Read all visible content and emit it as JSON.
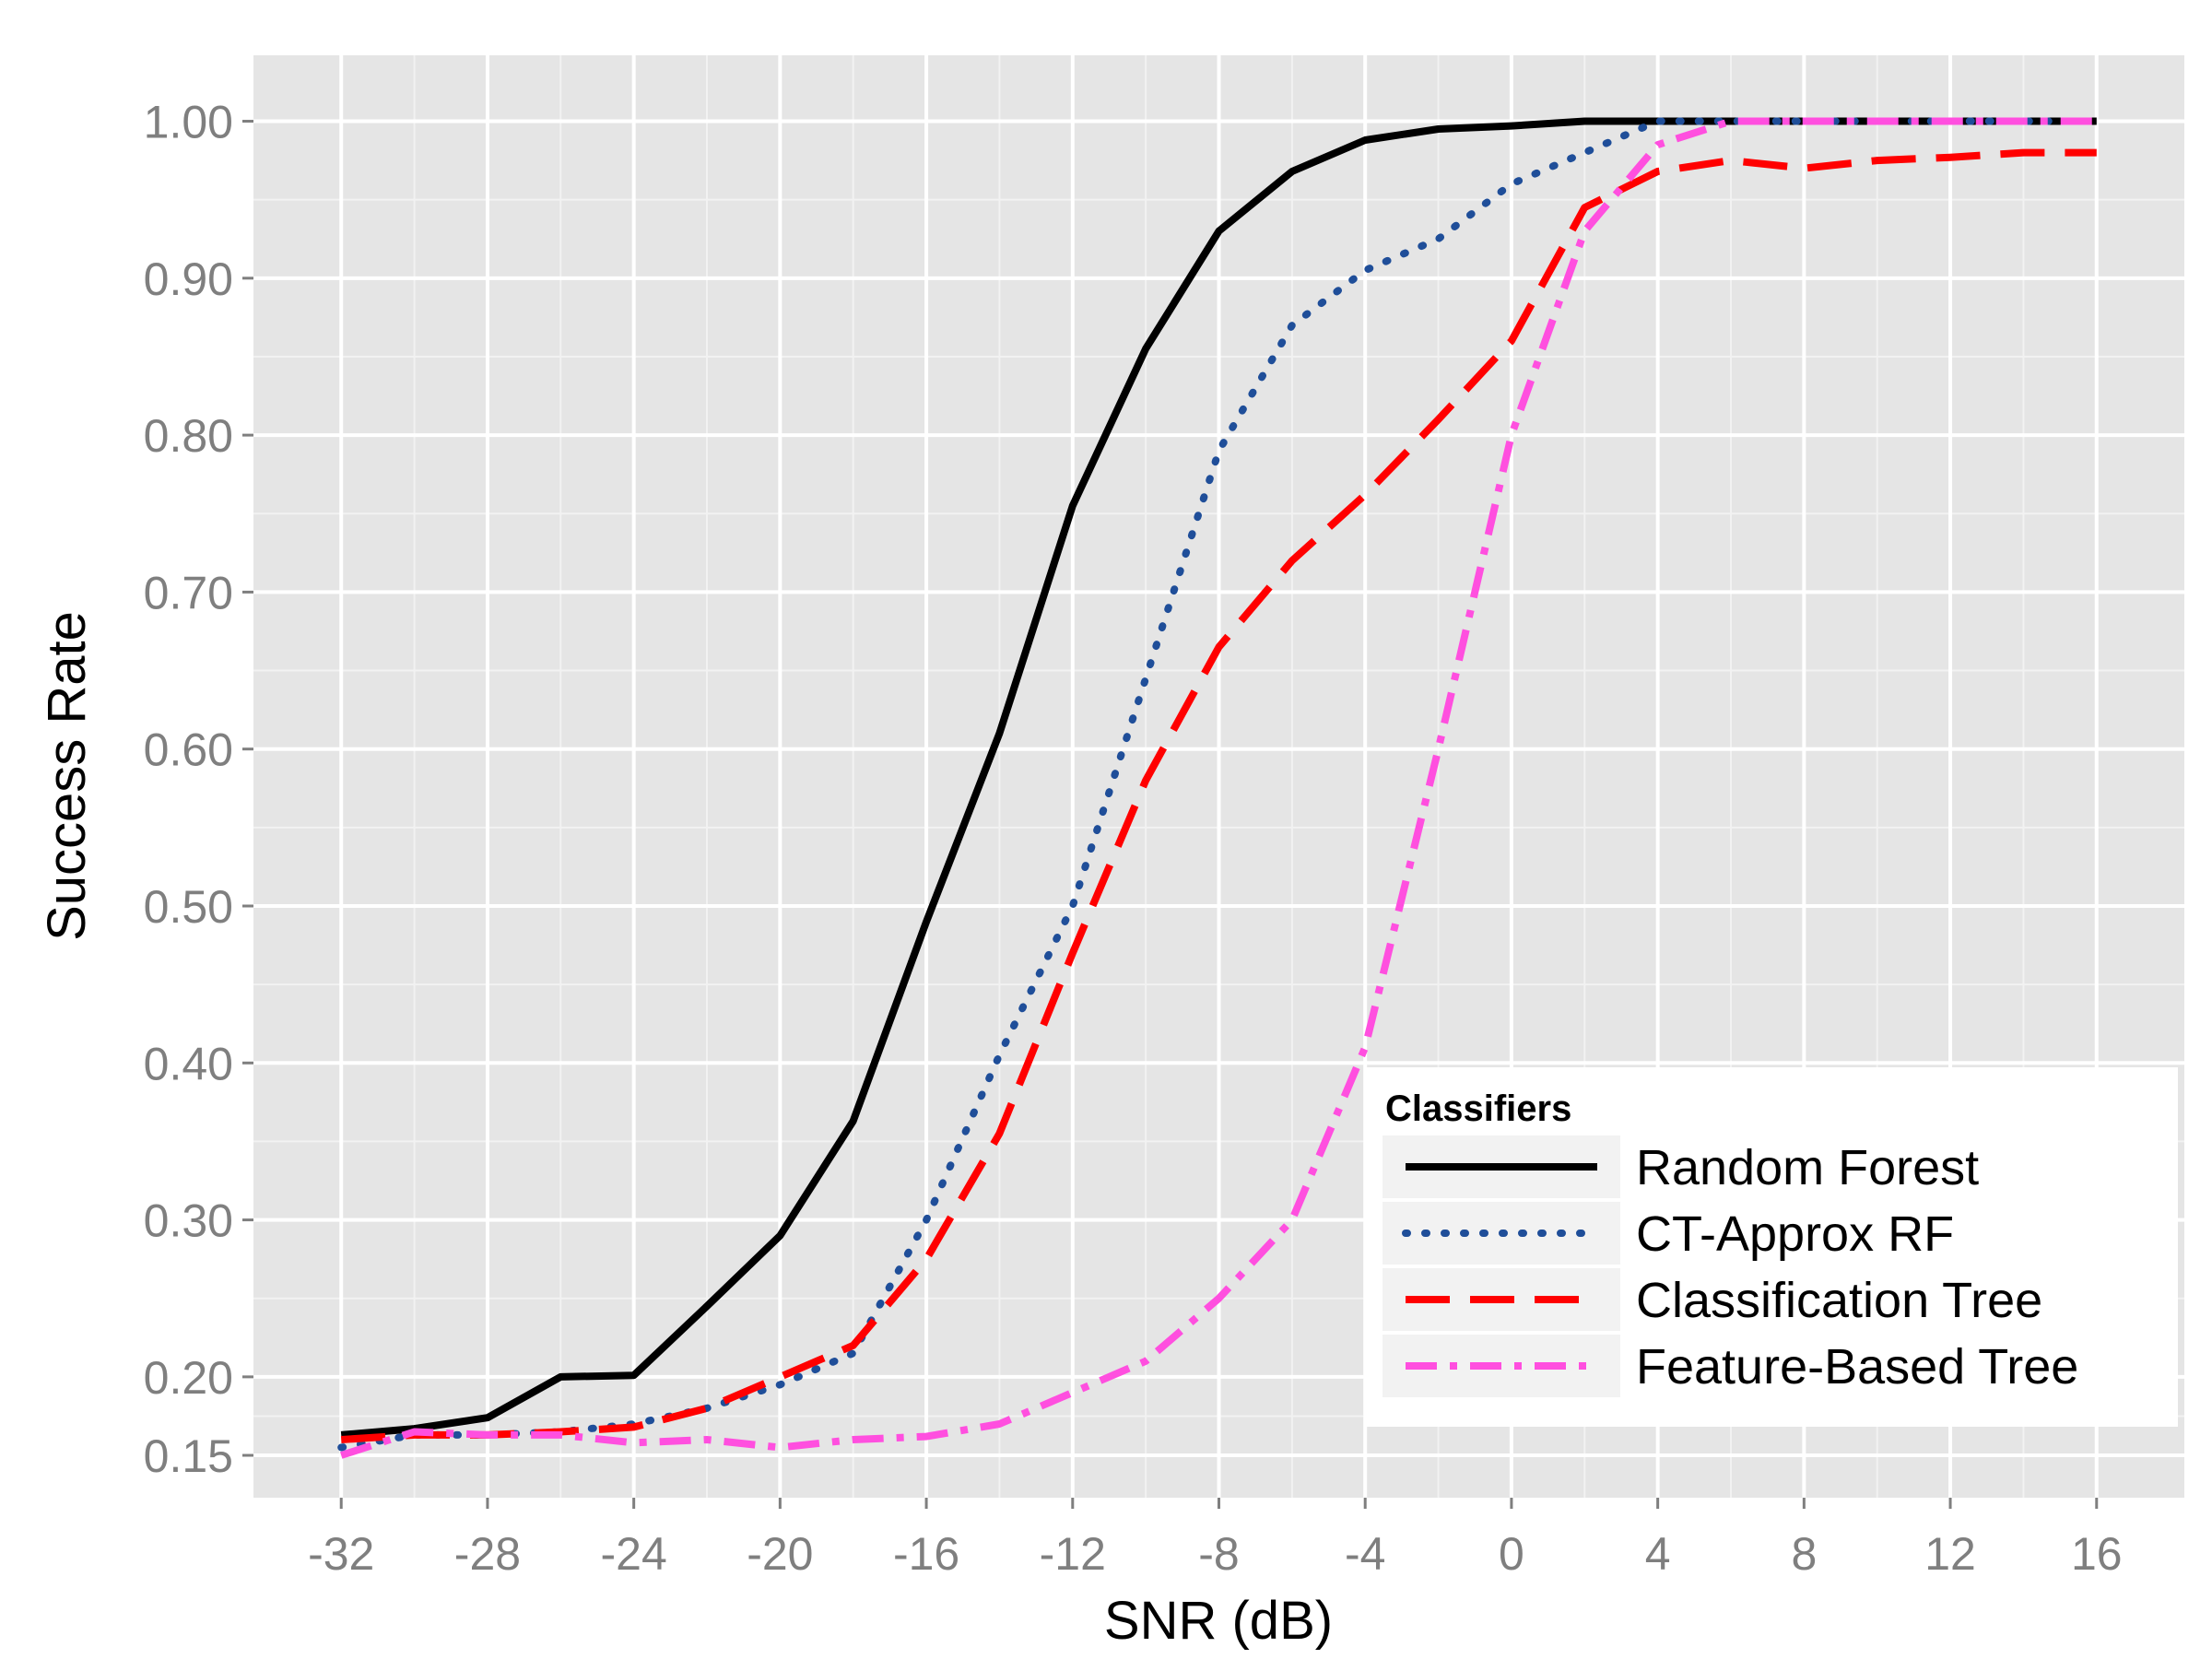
{
  "chart_data": {
    "type": "line",
    "title": "",
    "xlabel": "SNR (dB)",
    "ylabel": "Success Rate",
    "xlim": [
      -34.4,
      18.4
    ],
    "ylim": [
      0.123,
      1.042
    ],
    "x_ticks": [
      -32,
      -28,
      -24,
      -20,
      -16,
      -12,
      -8,
      -4,
      0,
      4,
      8,
      12,
      16
    ],
    "x_tick_labels": [
      "-32",
      "-28",
      "-24",
      "-20",
      "-16",
      "-12",
      "-8",
      "-4",
      "0",
      "4",
      "8",
      "12",
      "16"
    ],
    "y_ticks": [
      0.15,
      0.2,
      0.3,
      0.4,
      0.5,
      0.6,
      0.7,
      0.8,
      0.9,
      1.0
    ],
    "y_tick_labels": [
      "0.15",
      "0.20",
      "0.30",
      "0.40",
      "0.50",
      "0.60",
      "0.70",
      "0.80",
      "0.90",
      "1.00"
    ],
    "grid": true,
    "legend": {
      "title": "Classifiers",
      "position": "bottom-right"
    },
    "x": [
      -32,
      -30,
      -28,
      -26,
      -24,
      -22,
      -20,
      -18,
      -16,
      -14,
      -12,
      -10,
      -8,
      -6,
      -4,
      -2,
      0,
      2,
      4,
      6,
      8,
      10,
      12,
      14,
      16
    ],
    "series": [
      {
        "name": "Random Forest",
        "color": "#000000",
        "dash": "solid",
        "values": [
          0.163,
          0.167,
          0.174,
          0.2,
          0.201,
          0.245,
          0.29,
          0.363,
          0.49,
          0.61,
          0.755,
          0.855,
          0.93,
          0.968,
          0.988,
          0.995,
          0.997,
          1.0,
          1.0,
          1.0,
          1.0,
          1.0,
          1.0,
          1.0,
          1.0
        ]
      },
      {
        "name": "CT-Approx RF",
        "color": "#1f4e99",
        "dash": "dotted",
        "values": [
          0.155,
          0.163,
          0.163,
          0.165,
          0.17,
          0.18,
          0.195,
          0.215,
          0.3,
          0.405,
          0.5,
          0.645,
          0.79,
          0.87,
          0.905,
          0.925,
          0.96,
          0.98,
          1.0,
          1.0,
          1.0,
          1.0,
          1.0,
          1.0,
          1.0
        ]
      },
      {
        "name": "Classification Tree",
        "color": "#ff0000",
        "dash": "longdash",
        "values": [
          0.16,
          0.163,
          0.163,
          0.165,
          0.168,
          0.18,
          0.2,
          0.22,
          0.275,
          0.355,
          0.47,
          0.58,
          0.665,
          0.72,
          0.762,
          0.81,
          0.86,
          0.945,
          0.968,
          0.975,
          0.97,
          0.975,
          0.977,
          0.98,
          0.98
        ]
      },
      {
        "name": "Feature-Based Tree",
        "color": "#ff4fdf",
        "dash": "dashdot",
        "values": [
          0.15,
          0.165,
          0.163,
          0.163,
          0.158,
          0.16,
          0.155,
          0.16,
          0.162,
          0.17,
          0.19,
          0.21,
          0.25,
          0.3,
          0.41,
          0.6,
          0.8,
          0.93,
          0.985,
          1.0,
          1.0,
          1.0,
          1.0,
          1.0,
          1.0
        ]
      }
    ]
  }
}
